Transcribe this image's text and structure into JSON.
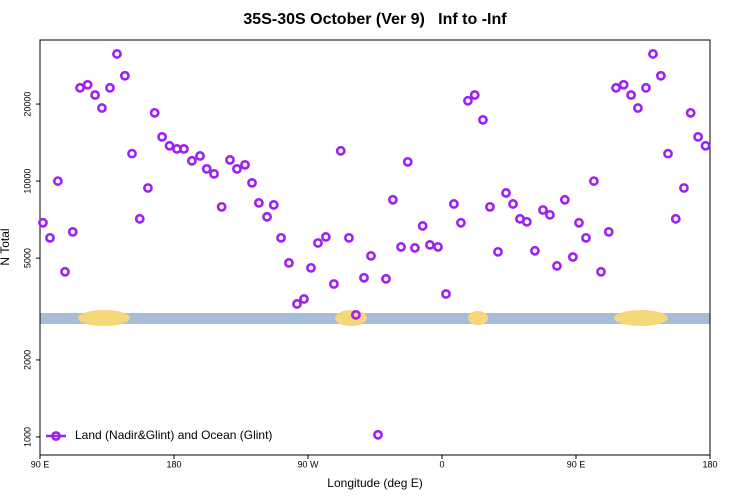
{
  "chart_data": {
    "type": "scatter",
    "title": "35S-30S October (Ver 9)   Inf to -Inf",
    "x_label": "Longitude (deg E)",
    "y_label": "N Total",
    "ylog": true,
    "legend": "bottom-left",
    "xlim": [
      90,
      540
    ],
    "ylim": [
      850,
      35600
    ],
    "xticks": [
      {
        "value": 90,
        "label": "90 E"
      },
      180,
      {
        "value": 270,
        "label": "90 W"
      },
      {
        "value": 360,
        "label": "0"
      },
      {
        "value": 450,
        "label": "90 E"
      },
      {
        "value": 540,
        "label": "180"
      }
    ],
    "yticks": [
      1000,
      2000,
      5000,
      10000,
      20000
    ],
    "series": [
      {
        "name": "Land (Nadir&Glint) and Ocean (Glint)",
        "color": "#a020f0",
        "x": [
          92,
          96.7,
          102,
          106.8,
          112,
          116.9,
          122,
          127,
          131.6,
          137,
          141.7,
          147,
          151.8,
          157,
          162.5,
          167,
          172,
          177,
          182,
          186.7,
          192,
          197.5,
          202,
          206.9,
          212,
          217.6,
          222.3,
          227.7,
          232.4,
          237,
          242.5,
          247,
          251.9,
          257.2,
          262.6,
          267.3,
          272,
          276.7,
          282,
          287.4,
          292,
          297.5,
          302.2,
          307.6,
          312.3,
          317,
          322.4,
          327,
          332.5,
          337,
          341.8,
          347,
          351.9,
          357.3,
          362.7,
          368,
          372.7,
          377.4,
          382,
          387.5,
          392.2,
          397.6,
          403,
          407.7,
          412.4,
          417,
          422.4,
          427.8,
          432.5,
          437.2,
          442.5,
          447.9,
          452,
          456.7,
          462,
          466.8,
          472,
          476.9,
          482,
          487,
          491.6,
          497,
          501.7,
          507,
          511.8,
          517,
          522.5,
          527,
          532,
          537
        ],
        "values": [
          6870,
          6000,
          10000,
          4420,
          6330,
          23150,
          23800,
          21700,
          19300,
          23150,
          31400,
          25800,
          12800,
          7120,
          9400,
          18480,
          14890,
          13740,
          13360,
          13360,
          12000,
          12540,
          11160,
          10670,
          7930,
          12100,
          11160,
          11570,
          9840,
          8220,
          7250,
          8070,
          6000,
          4790,
          3310,
          3460,
          4580,
          5730,
          6050,
          3960,
          13130,
          6000,
          3000,
          4190,
          5100,
          1020,
          4150,
          8450,
          5530,
          11890,
          5480,
          6680,
          5630,
          5530,
          3620,
          8140,
          6870,
          20600,
          21700,
          17350,
          7930,
          5290,
          8990,
          8140,
          7120,
          6930,
          5340,
          7710,
          7380,
          4660,
          8450,
          5050,
          6870,
          6000,
          10000,
          4420,
          6330,
          23150,
          23800,
          21700,
          19300,
          23150,
          31400,
          25800,
          12800,
          7120,
          9400,
          18480,
          14890,
          13740
        ]
      }
    ]
  }
}
